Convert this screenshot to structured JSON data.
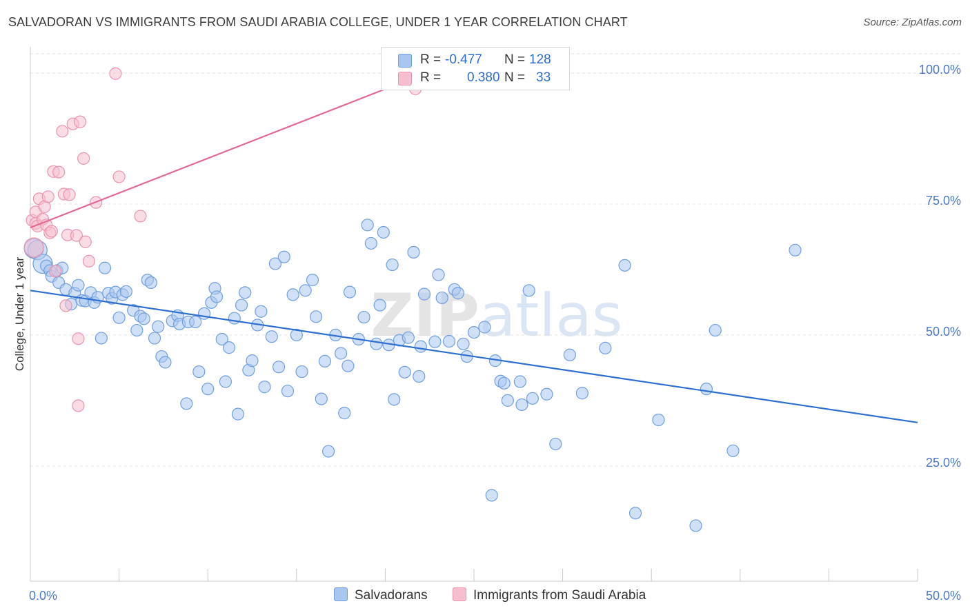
{
  "title": "SALVADORAN VS IMMIGRANTS FROM SAUDI ARABIA COLLEGE, UNDER 1 YEAR CORRELATION CHART",
  "source": "Source: ZipAtlas.com",
  "watermark": "ZIPatlas",
  "colors": {
    "blue_fill": "#a9c6ee",
    "blue_stroke": "#6f9fe0",
    "blue_line": "#2d6fd0",
    "pink_fill": "#f6bfcf",
    "pink_stroke": "#ec93ad",
    "pink_line": "#e26a92",
    "grid": "#e2e2e2",
    "tick_text": "#4a78c8"
  },
  "legend": {
    "r_label": "R =",
    "n_label": "N =",
    "rows": [
      {
        "name": "Salvadorans",
        "r": "-0.477",
        "n": "128"
      },
      {
        "name": "Immigrants from Saudi Arabia",
        "r": "0.380",
        "n": "33"
      }
    ]
  },
  "chart_data": {
    "type": "scatter",
    "xlabel": "",
    "ylabel": "College, Under 1 year",
    "xlim": [
      0,
      50
    ],
    "ylim": [
      3,
      105
    ],
    "x_ticks": [
      "0.0%",
      "50.0%"
    ],
    "y_ticks": [
      {
        "value": 25,
        "label": "25.0%"
      },
      {
        "value": 50,
        "label": "50.0%"
      },
      {
        "value": 75,
        "label": "75.0%"
      },
      {
        "value": 100,
        "label": "100.0%"
      }
    ],
    "grid": "horizontal dashed",
    "series": [
      {
        "name": "Salvadorans",
        "color": "blue",
        "trend": {
          "x": [
            0,
            50
          ],
          "y": [
            58.5,
            33.3
          ]
        },
        "points": [
          [
            0.2,
            66.5,
            1
          ],
          [
            0.4,
            66.2,
            1
          ],
          [
            0.7,
            63.6,
            1
          ],
          [
            0.9,
            63.2,
            0
          ],
          [
            1.1,
            62.3,
            0
          ],
          [
            1.2,
            61.2,
            0
          ],
          [
            1.5,
            62.3,
            0
          ],
          [
            1.6,
            60.0,
            0
          ],
          [
            1.8,
            62.8,
            0
          ],
          [
            2.0,
            58.7,
            0
          ],
          [
            2.3,
            55.9,
            0
          ],
          [
            2.5,
            58.0,
            0
          ],
          [
            2.7,
            59.5,
            0
          ],
          [
            2.9,
            56.6,
            0
          ],
          [
            3.1,
            56.5,
            0
          ],
          [
            3.4,
            58.1,
            0
          ],
          [
            3.6,
            56.2,
            0
          ],
          [
            3.8,
            57.2,
            0
          ],
          [
            4.0,
            49.4,
            0
          ],
          [
            4.2,
            62.8,
            0
          ],
          [
            4.4,
            58.0,
            0
          ],
          [
            4.6,
            57.0,
            0
          ],
          [
            4.8,
            58.2,
            0
          ],
          [
            5.0,
            53.3,
            0
          ],
          [
            5.2,
            57.7,
            0
          ],
          [
            5.4,
            58.3,
            0
          ],
          [
            5.8,
            54.7,
            0
          ],
          [
            6.0,
            50.9,
            0
          ],
          [
            6.2,
            53.6,
            0
          ],
          [
            6.4,
            53.1,
            0
          ],
          [
            6.6,
            60.5,
            0
          ],
          [
            6.8,
            60.0,
            0
          ],
          [
            7.0,
            49.4,
            0
          ],
          [
            7.2,
            51.6,
            0
          ],
          [
            7.4,
            45.9,
            0
          ],
          [
            7.6,
            44.8,
            0
          ],
          [
            8.0,
            52.7,
            0
          ],
          [
            8.3,
            53.7,
            0
          ],
          [
            8.4,
            52.1,
            0
          ],
          [
            8.8,
            36.9,
            0
          ],
          [
            8.9,
            52.5,
            0
          ],
          [
            9.3,
            52.5,
            0
          ],
          [
            9.5,
            43.0,
            0
          ],
          [
            9.8,
            54.1,
            0
          ],
          [
            10.0,
            39.7,
            0
          ],
          [
            10.2,
            56.2,
            0
          ],
          [
            10.4,
            58.9,
            0
          ],
          [
            10.5,
            57.3,
            0
          ],
          [
            10.8,
            49.2,
            0
          ],
          [
            11.0,
            41.1,
            0
          ],
          [
            11.2,
            47.6,
            0
          ],
          [
            11.5,
            53.2,
            0
          ],
          [
            11.7,
            34.9,
            0
          ],
          [
            11.9,
            55.7,
            0
          ],
          [
            12.1,
            58.1,
            0
          ],
          [
            12.3,
            43.3,
            0
          ],
          [
            12.5,
            45.1,
            0
          ],
          [
            12.8,
            51.9,
            0
          ],
          [
            13.0,
            54.5,
            0
          ],
          [
            13.2,
            40.1,
            0
          ],
          [
            13.6,
            49.7,
            0
          ],
          [
            13.8,
            63.6,
            0
          ],
          [
            14.0,
            43.9,
            0
          ],
          [
            14.3,
            64.9,
            0
          ],
          [
            14.5,
            39.3,
            0
          ],
          [
            14.8,
            57.7,
            0
          ],
          [
            15.0,
            50.0,
            0
          ],
          [
            15.3,
            43.0,
            0
          ],
          [
            15.5,
            58.5,
            0
          ],
          [
            15.9,
            60.5,
            0
          ],
          [
            16.1,
            53.5,
            0
          ],
          [
            16.4,
            37.8,
            0
          ],
          [
            16.6,
            45.0,
            0
          ],
          [
            16.8,
            27.8,
            0
          ],
          [
            17.2,
            50.0,
            0
          ],
          [
            17.5,
            46.5,
            0
          ],
          [
            17.7,
            35.1,
            0
          ],
          [
            18.0,
            58.2,
            0
          ],
          [
            18.5,
            49.2,
            0
          ],
          [
            18.8,
            53.4,
            0
          ],
          [
            19.0,
            71.0,
            0
          ],
          [
            19.2,
            67.5,
            0
          ],
          [
            19.5,
            48.3,
            0
          ],
          [
            19.7,
            55.7,
            0
          ],
          [
            19.9,
            69.6,
            0
          ],
          [
            20.2,
            48.1,
            0
          ],
          [
            20.4,
            63.4,
            0
          ],
          [
            20.5,
            37.7,
            0
          ],
          [
            20.8,
            49.0,
            0
          ],
          [
            21.1,
            42.9,
            0
          ],
          [
            21.3,
            49.5,
            0
          ],
          [
            21.6,
            65.8,
            0
          ],
          [
            21.9,
            42.1,
            0
          ],
          [
            22.0,
            47.8,
            0
          ],
          [
            22.2,
            57.8,
            0
          ],
          [
            23.0,
            61.5,
            0
          ],
          [
            23.2,
            57.1,
            0
          ],
          [
            23.6,
            48.8,
            0
          ],
          [
            23.9,
            58.7,
            0
          ],
          [
            24.1,
            58.0,
            0
          ],
          [
            24.4,
            48.3,
            0
          ],
          [
            24.6,
            45.9,
            0
          ],
          [
            25.0,
            50.5,
            0
          ],
          [
            25.6,
            51.5,
            0
          ],
          [
            26.0,
            19.4,
            0
          ],
          [
            26.2,
            45.1,
            0
          ],
          [
            26.5,
            41.2,
            0
          ],
          [
            26.7,
            40.8,
            0
          ],
          [
            26.9,
            37.5,
            0
          ],
          [
            27.6,
            41.1,
            0
          ],
          [
            27.7,
            36.7,
            0
          ],
          [
            28.1,
            58.5,
            0
          ],
          [
            28.3,
            37.9,
            0
          ],
          [
            29.1,
            38.7,
            0
          ],
          [
            29.6,
            29.2,
            0
          ],
          [
            30.4,
            46.2,
            0
          ],
          [
            31.1,
            38.9,
            0
          ],
          [
            32.4,
            47.5,
            0
          ],
          [
            33.5,
            63.3,
            0
          ],
          [
            34.1,
            16.0,
            0
          ],
          [
            35.4,
            33.8,
            0
          ],
          [
            37.5,
            13.6,
            0
          ],
          [
            38.1,
            39.7,
            0
          ],
          [
            38.6,
            50.9,
            0
          ],
          [
            39.6,
            27.9,
            0
          ],
          [
            43.1,
            66.2,
            0
          ],
          [
            17.9,
            44.1,
            0
          ],
          [
            22.8,
            48.7,
            0
          ]
        ]
      },
      {
        "name": "Immigrants from Saudi Arabia",
        "color": "pink",
        "trend": {
          "x": [
            0,
            22.3
          ],
          "y": [
            70.5,
            100
          ]
        },
        "points": [
          [
            0.1,
            71.9,
            0
          ],
          [
            0.3,
            73.5,
            0
          ],
          [
            0.3,
            71.3,
            0
          ],
          [
            0.4,
            70.8,
            0
          ],
          [
            0.5,
            76.0,
            0
          ],
          [
            0.7,
            72.1,
            0
          ],
          [
            0.8,
            74.5,
            0
          ],
          [
            0.9,
            71.0,
            0
          ],
          [
            1.0,
            76.4,
            0
          ],
          [
            1.1,
            69.5,
            0
          ],
          [
            1.2,
            69.8,
            0
          ],
          [
            1.3,
            81.2,
            0
          ],
          [
            1.4,
            62.2,
            0
          ],
          [
            1.6,
            81.1,
            0
          ],
          [
            1.8,
            88.9,
            0
          ],
          [
            1.9,
            76.9,
            0
          ],
          [
            2.0,
            55.6,
            0
          ],
          [
            2.1,
            69.1,
            0
          ],
          [
            2.2,
            76.8,
            0
          ],
          [
            2.4,
            90.3,
            0
          ],
          [
            2.6,
            69.0,
            0
          ],
          [
            2.7,
            49.3,
            0
          ],
          [
            2.7,
            36.5,
            0
          ],
          [
            2.8,
            90.7,
            0
          ],
          [
            3.0,
            83.7,
            0
          ],
          [
            3.1,
            67.8,
            0
          ],
          [
            3.3,
            64.1,
            0
          ],
          [
            3.7,
            75.3,
            0
          ],
          [
            4.8,
            99.9,
            0
          ],
          [
            5.0,
            80.2,
            0
          ],
          [
            6.2,
            72.7,
            0
          ],
          [
            21.7,
            97.0,
            0
          ],
          [
            0.2,
            66.7,
            1
          ]
        ]
      }
    ]
  },
  "note_points": "points are [x, y, is_large]"
}
